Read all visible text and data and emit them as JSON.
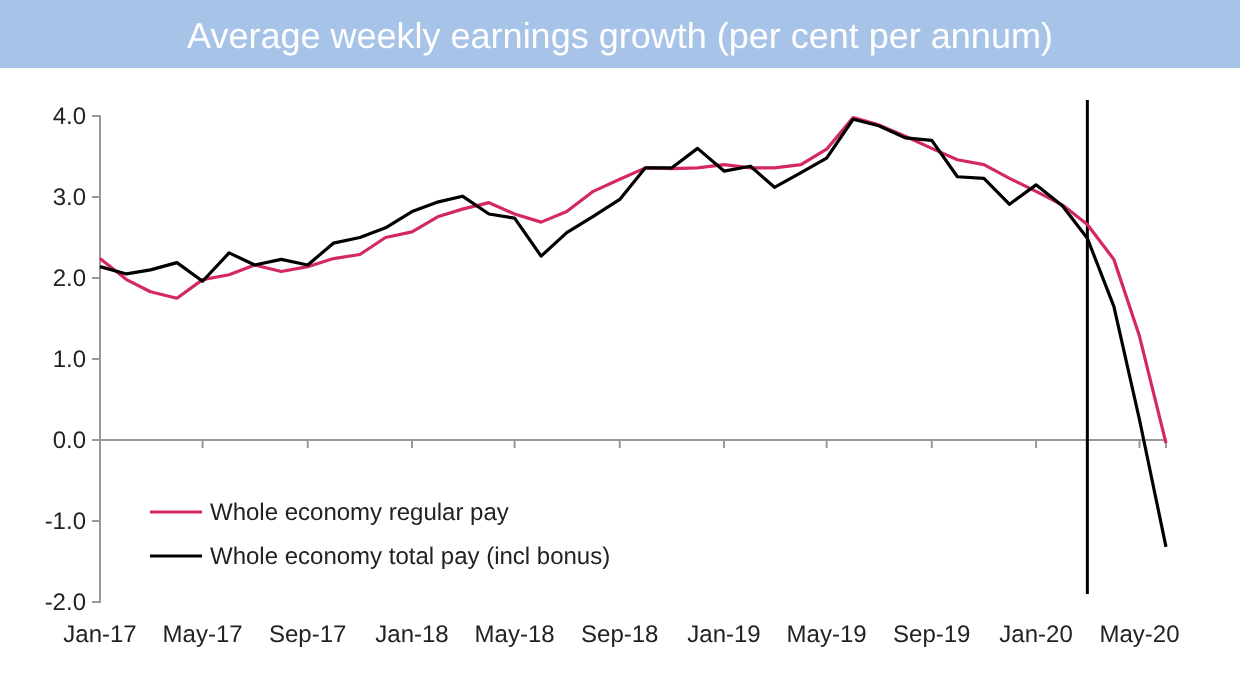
{
  "chart_data": {
    "type": "line",
    "title": "Average weekly earnings growth (per cent per annum)",
    "x": [
      "2017-01",
      "2017-02",
      "2017-03",
      "2017-04",
      "2017-05",
      "2017-06",
      "2017-07",
      "2017-08",
      "2017-09",
      "2017-10",
      "2017-11",
      "2017-12",
      "2018-01",
      "2018-02",
      "2018-03",
      "2018-04",
      "2018-05",
      "2018-06",
      "2018-07",
      "2018-08",
      "2018-09",
      "2018-10",
      "2018-11",
      "2018-12",
      "2019-01",
      "2019-02",
      "2019-03",
      "2019-04",
      "2019-05",
      "2019-06",
      "2019-07",
      "2019-08",
      "2019-09",
      "2019-10",
      "2019-11",
      "2019-12",
      "2020-01",
      "2020-02",
      "2020-03",
      "2020-04",
      "2020-05",
      "2020-06"
    ],
    "series": [
      {
        "name": "Whole economy regular pay",
        "color": "#d4295f",
        "values": [
          2.24,
          1.98,
          1.83,
          1.75,
          1.98,
          2.04,
          2.16,
          2.08,
          2.14,
          2.24,
          2.29,
          2.5,
          2.57,
          2.76,
          2.85,
          2.93,
          2.79,
          2.69,
          2.82,
          3.07,
          3.22,
          3.36,
          3.35,
          3.36,
          3.4,
          3.36,
          3.36,
          3.4,
          3.59,
          3.98,
          3.89,
          3.75,
          3.6,
          3.46,
          3.4,
          3.23,
          3.07,
          2.9,
          2.66,
          2.23,
          1.28,
          -0.04
        ]
      },
      {
        "name": "Whole economy total pay (incl bonus)",
        "color": "#000000",
        "values": [
          2.14,
          2.05,
          2.1,
          2.19,
          1.96,
          2.31,
          2.16,
          2.23,
          2.16,
          2.43,
          2.5,
          2.62,
          2.82,
          2.94,
          3.01,
          2.79,
          2.74,
          2.27,
          2.56,
          2.76,
          2.97,
          3.36,
          3.36,
          3.6,
          3.32,
          3.38,
          3.12,
          3.3,
          3.48,
          3.96,
          3.88,
          3.73,
          3.7,
          3.25,
          3.23,
          2.91,
          3.15,
          2.89,
          2.49,
          1.65,
          0.25,
          -1.32
        ]
      }
    ],
    "xlim": [
      "2017-01",
      "2020-06"
    ],
    "xticks": [
      {
        "value": "2017-01",
        "label": "Jan-17"
      },
      {
        "value": "2017-05",
        "label": "May-17"
      },
      {
        "value": "2017-09",
        "label": "Sep-17"
      },
      {
        "value": "2018-01",
        "label": "Jan-18"
      },
      {
        "value": "2018-05",
        "label": "May-18"
      },
      {
        "value": "2018-09",
        "label": "Sep-18"
      },
      {
        "value": "2019-01",
        "label": "Jan-19"
      },
      {
        "value": "2019-05",
        "label": "May-19"
      },
      {
        "value": "2019-09",
        "label": "Sep-19"
      },
      {
        "value": "2020-01",
        "label": "Jan-20"
      },
      {
        "value": "2020-05",
        "label": "May-20"
      }
    ],
    "ylim": [
      -2,
      4
    ],
    "yticks": [
      {
        "value": -2,
        "label": "-2.0"
      },
      {
        "value": -1,
        "label": "-1.0"
      },
      {
        "value": 0,
        "label": "0.0"
      },
      {
        "value": 1,
        "label": "1.0"
      },
      {
        "value": 2,
        "label": "2.0"
      },
      {
        "value": 3,
        "label": "3.0"
      },
      {
        "value": 4,
        "label": "4.0"
      }
    ],
    "ref_lines": [
      {
        "axis": "x",
        "value": "2020-03",
        "color": "#000000"
      }
    ],
    "grid": false,
    "legend": "bottom left",
    "marker": "none",
    "line_style": "solid"
  }
}
